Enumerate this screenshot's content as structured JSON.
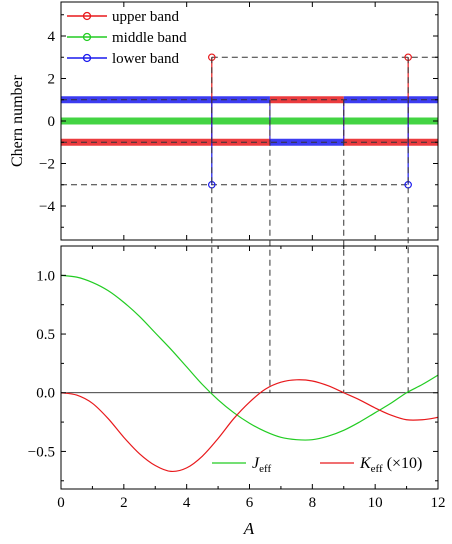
{
  "chart_data": [
    {
      "type": "line",
      "ylabel": "Chern number",
      "xlim": [
        0,
        12
      ],
      "ylim": [
        -5.6,
        5.6
      ],
      "yticks": [
        -4,
        -2,
        0,
        2,
        4
      ],
      "legend": {
        "placement": "top-left",
        "entries": [
          {
            "label": "upper band",
            "color": "#e8191c"
          },
          {
            "label": "middle band",
            "color": "#22cc22"
          },
          {
            "label": "lower band",
            "color": "#1a1aee"
          }
        ]
      },
      "series": [
        {
          "name": "upper band",
          "color": "#e8191c",
          "segments": [
            {
              "x": [
                0,
                4.8
              ],
              "y": -1
            },
            {
              "x": [
                4.8,
                6.65
              ],
              "y": -1
            },
            {
              "x": [
                6.65,
                9.0
              ],
              "y": 1
            },
            {
              "x": [
                9.0,
                11.05
              ],
              "y": -1
            },
            {
              "x": [
                11.05,
                12
              ],
              "y": -1
            }
          ],
          "spikes": [
            {
              "x": 4.8,
              "y": 3
            },
            {
              "x": 11.05,
              "y": 3
            }
          ]
        },
        {
          "name": "middle band",
          "color": "#22cc22",
          "segments": [
            {
              "x": [
                0,
                12
              ],
              "y": 0
            }
          ],
          "spikes": []
        },
        {
          "name": "lower band",
          "color": "#1a1aee",
          "segments": [
            {
              "x": [
                0,
                4.8
              ],
              "y": 1
            },
            {
              "x": [
                4.8,
                6.65
              ],
              "y": 1
            },
            {
              "x": [
                6.65,
                9.0
              ],
              "y": -1
            },
            {
              "x": [
                9.0,
                11.05
              ],
              "y": 1
            },
            {
              "x": [
                11.05,
                12
              ],
              "y": 1
            }
          ],
          "spikes": [
            {
              "x": 4.8,
              "y": -3
            },
            {
              "x": 11.05,
              "y": -3
            }
          ]
        }
      ],
      "dashed_levels": [
        {
          "y": 3,
          "x": [
            4.8,
            12
          ]
        },
        {
          "y": -3,
          "x": [
            0,
            11.05
          ]
        },
        {
          "y": 1,
          "x": [
            0,
            12
          ]
        },
        {
          "y": -1,
          "x": [
            0,
            12
          ]
        }
      ]
    },
    {
      "type": "line",
      "xlabel": "A",
      "xlim": [
        0,
        12
      ],
      "ylim": [
        -0.82,
        1.25
      ],
      "xticks": [
        0,
        2,
        4,
        6,
        8,
        10,
        12
      ],
      "yticks": [
        -0.5,
        0.0,
        0.5,
        1.0
      ],
      "ytick_labels": [
        "−0.5",
        "0.0",
        "0.5",
        "1.0"
      ],
      "zero_line": true,
      "legend": {
        "placement": "bottom-right",
        "entries": [
          {
            "label_main": "J",
            "label_sub": "eff",
            "label_suffix": "",
            "color": "#22cc22"
          },
          {
            "label_main": "K",
            "label_sub": "eff",
            "label_suffix": " (×10)",
            "color": "#e8191c"
          }
        ]
      },
      "series": [
        {
          "name": "J_eff",
          "color": "#22cc22",
          "x": [
            0,
            0.5,
            1,
            1.5,
            2,
            2.5,
            3,
            3.5,
            4,
            4.5,
            5,
            5.5,
            6,
            6.5,
            7,
            7.5,
            8,
            8.5,
            9,
            9.5,
            10,
            10.5,
            11,
            11.5,
            12
          ],
          "y": [
            1.0,
            0.985,
            0.94,
            0.87,
            0.77,
            0.65,
            0.51,
            0.37,
            0.22,
            0.07,
            -0.06,
            -0.17,
            -0.26,
            -0.33,
            -0.38,
            -0.4,
            -0.4,
            -0.37,
            -0.32,
            -0.25,
            -0.17,
            -0.09,
            0.0,
            0.07,
            0.15
          ]
        },
        {
          "name": "K_eff (×10)",
          "color": "#e8191c",
          "x": [
            0,
            0.5,
            1,
            1.5,
            2,
            2.5,
            3,
            3.5,
            4,
            4.5,
            5,
            5.5,
            6,
            6.5,
            7,
            7.5,
            8,
            8.5,
            9,
            9.5,
            10,
            10.5,
            11,
            11.5,
            12
          ],
          "y": [
            0.0,
            -0.02,
            -0.09,
            -0.22,
            -0.38,
            -0.52,
            -0.62,
            -0.67,
            -0.64,
            -0.54,
            -0.39,
            -0.22,
            -0.08,
            0.03,
            0.09,
            0.11,
            0.1,
            0.06,
            0.0,
            -0.06,
            -0.13,
            -0.19,
            -0.23,
            -0.23,
            -0.21
          ]
        }
      ],
      "vertical_dashes": [
        4.8,
        6.65,
        9.0,
        11.05
      ]
    }
  ]
}
